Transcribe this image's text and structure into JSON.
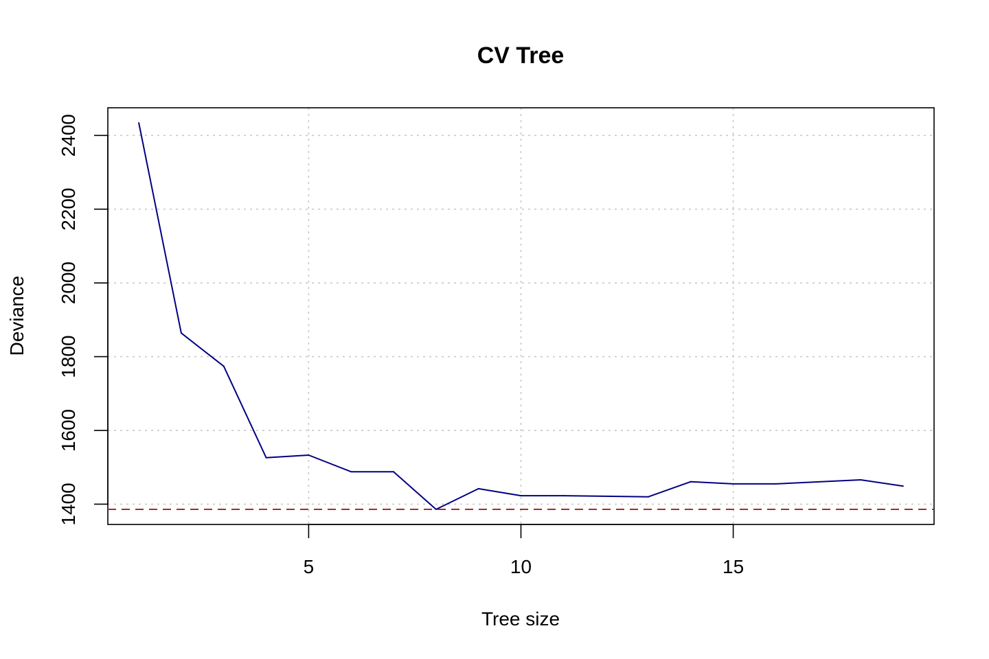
{
  "chart_data": {
    "type": "line",
    "title": "CV Tree",
    "xlabel": "Tree size",
    "ylabel": "Deviance",
    "xlim": [
      0.27,
      19.73
    ],
    "ylim": [
      1345,
      2475
    ],
    "x_ticks": [
      5,
      10,
      15
    ],
    "y_ticks": [
      1400,
      1600,
      1800,
      2000,
      2200,
      2400
    ],
    "grid": true,
    "series": [
      {
        "color": "#000080",
        "x": [
          1,
          2,
          3,
          4,
          5,
          6,
          7,
          8,
          9,
          10,
          11,
          13,
          14,
          15,
          16,
          18,
          19
        ],
        "values": [
          2434,
          1864,
          1774,
          1526,
          1533,
          1488,
          1488,
          1386,
          1442,
          1423,
          1423,
          1420,
          1461,
          1455,
          1455,
          1466,
          1449
        ]
      }
    ],
    "reference_line": {
      "y": 1386,
      "style": "dashed",
      "color": "#A52A2A"
    },
    "colors": {
      "line": "#000080",
      "reference": "#A52A2A",
      "grid": "#C8C8C8",
      "axis": "#000000"
    }
  }
}
